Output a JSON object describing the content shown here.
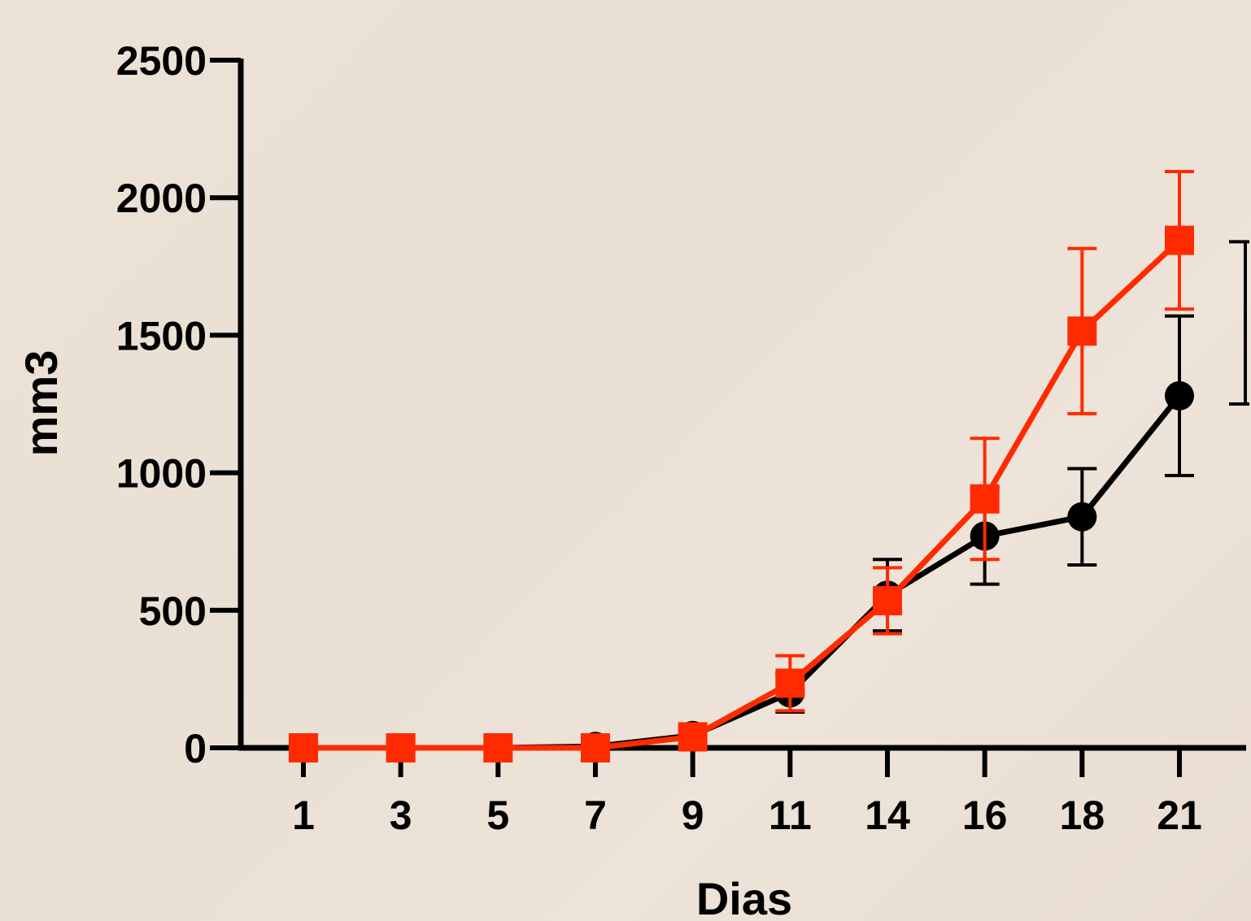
{
  "chart_data": {
    "type": "line",
    "title": "",
    "xlabel": "Dias",
    "ylabel": "mm3",
    "categories": [
      "1",
      "3",
      "5",
      "7",
      "9",
      "11",
      "14",
      "16",
      "18",
      "21"
    ],
    "ylim": [
      0,
      2500
    ],
    "yticks": [
      0,
      500,
      1000,
      1500,
      2000,
      2500
    ],
    "grid": false,
    "legend": "none",
    "series": [
      {
        "color": "#000000",
        "marker": "circle",
        "values": [
          0,
          0,
          0,
          5,
          45,
          200,
          555,
          770,
          840,
          1280
        ],
        "error": [
          0,
          0,
          0,
          0,
          0,
          70,
          130,
          175,
          175,
          290
        ]
      },
      {
        "color": "#ff2a00",
        "marker": "square",
        "values": [
          0,
          0,
          0,
          0,
          40,
          235,
          535,
          905,
          1515,
          1845
        ],
        "error": [
          0,
          0,
          0,
          0,
          0,
          100,
          120,
          220,
          300,
          250
        ]
      }
    ],
    "annotations": [
      {
        "type": "significance-bracket",
        "from": 1250,
        "to": 1840
      }
    ]
  }
}
